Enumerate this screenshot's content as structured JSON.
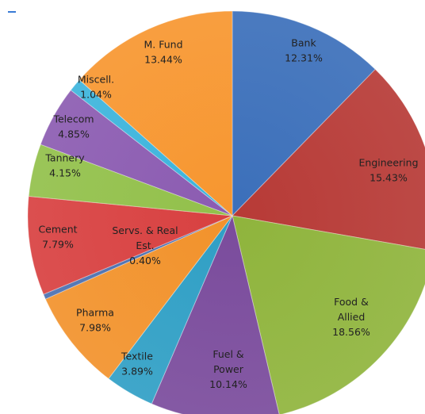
{
  "chart_data": {
    "type": "pie",
    "title": "",
    "slices": [
      {
        "label": "Bank",
        "value_label": "12.31%",
        "value": 12.31,
        "color": "#3b6fba"
      },
      {
        "label": "Engineering",
        "value_label": "15.43%",
        "value": 15.43,
        "color": "#b73a36"
      },
      {
        "label": "Food & Allied",
        "value_label": "18.56%",
        "value": 18.56,
        "color": "#8fb43c"
      },
      {
        "label": "Fuel & Power",
        "value_label": "10.14%",
        "value": 10.14,
        "color": "#7a4b9c"
      },
      {
        "label": "Textile",
        "value_label": "3.89%",
        "value": 3.89,
        "color": "#2f9fc5"
      },
      {
        "label": "Pharma",
        "value_label": "7.98%",
        "value": 7.98,
        "color": "#f2922b"
      },
      {
        "label": "Servs. & Real Est.",
        "value_label": "0.40%",
        "value": 0.4,
        "color": "#4a6fb0"
      },
      {
        "label": "Cement",
        "value_label": "7.79%",
        "value": 7.79,
        "color": "#d84040"
      },
      {
        "label": "Tannery",
        "value_label": "4.15%",
        "value": 4.15,
        "color": "#92c04a"
      },
      {
        "label": "Telecom",
        "value_label": "4.85%",
        "value": 4.85,
        "color": "#8b5bb1"
      },
      {
        "label": "Miscell.",
        "value_label": "1.04%",
        "value": 1.04,
        "color": "#3cb4dc"
      },
      {
        "label": "M. Fund",
        "value_label": "13.44%",
        "value": 13.44,
        "color": "#f7962f"
      }
    ]
  }
}
